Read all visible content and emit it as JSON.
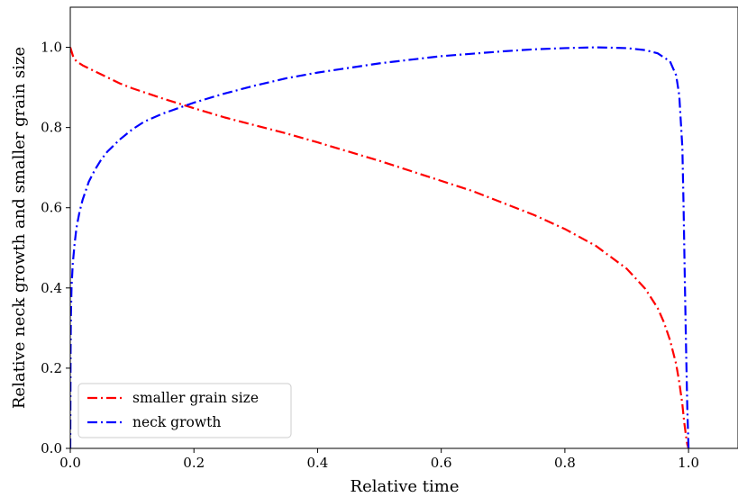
{
  "chart_data": {
    "type": "line",
    "title": "",
    "xlabel": "Relative time",
    "ylabel": "Relative neck growth and smaller grain size",
    "xlim": [
      0.0,
      1.08
    ],
    "ylim": [
      0.0,
      1.1
    ],
    "xticks": [
      0.0,
      0.2,
      0.4,
      0.6,
      0.8,
      1.0
    ],
    "xtick_labels": [
      "0.0",
      "0.2",
      "0.4",
      "0.6",
      "0.8",
      "1.0"
    ],
    "yticks": [
      0.0,
      0.2,
      0.4,
      0.6,
      0.8,
      1.0
    ],
    "ytick_labels": [
      "0.0",
      "0.2",
      "0.4",
      "0.6",
      "0.8",
      "1.0"
    ],
    "grid": false,
    "legend_position": "lower-left",
    "series": [
      {
        "name": "smaller grain size",
        "color": "#ff0000",
        "linestyle": "dashdot",
        "x": [
          0.0,
          0.002,
          0.005,
          0.01,
          0.02,
          0.04,
          0.06,
          0.08,
          0.1,
          0.15,
          0.2,
          0.25,
          0.3,
          0.35,
          0.4,
          0.45,
          0.5,
          0.55,
          0.6,
          0.65,
          0.7,
          0.75,
          0.8,
          0.85,
          0.9,
          0.93,
          0.95,
          0.96,
          0.97,
          0.98,
          0.985,
          0.99,
          0.993,
          0.996,
          0.998,
          1.0
        ],
        "y": [
          1.0,
          0.99,
          0.975,
          0.965,
          0.955,
          0.94,
          0.925,
          0.91,
          0.898,
          0.872,
          0.848,
          0.825,
          0.805,
          0.785,
          0.763,
          0.74,
          0.717,
          0.692,
          0.667,
          0.642,
          0.612,
          0.582,
          0.547,
          0.505,
          0.448,
          0.398,
          0.35,
          0.315,
          0.27,
          0.21,
          0.165,
          0.11,
          0.065,
          0.03,
          0.01,
          0.0
        ]
      },
      {
        "name": "neck growth",
        "color": "#0000ff",
        "linestyle": "dashdot",
        "x": [
          0.0,
          0.0005,
          0.001,
          0.002,
          0.004,
          0.007,
          0.01,
          0.015,
          0.02,
          0.03,
          0.04,
          0.05,
          0.06,
          0.08,
          0.1,
          0.12,
          0.15,
          0.2,
          0.25,
          0.3,
          0.35,
          0.4,
          0.5,
          0.6,
          0.7,
          0.75,
          0.8,
          0.85,
          0.9,
          0.93,
          0.95,
          0.97,
          0.98,
          0.985,
          0.99,
          0.992,
          0.994,
          0.996,
          0.998,
          1.0
        ],
        "y": [
          0.0,
          0.24,
          0.33,
          0.4,
          0.46,
          0.51,
          0.55,
          0.59,
          0.62,
          0.665,
          0.695,
          0.72,
          0.74,
          0.77,
          0.795,
          0.815,
          0.835,
          0.862,
          0.885,
          0.905,
          0.923,
          0.937,
          0.96,
          0.978,
          0.99,
          0.995,
          0.998,
          1.0,
          0.998,
          0.993,
          0.985,
          0.965,
          0.93,
          0.88,
          0.75,
          0.6,
          0.42,
          0.25,
          0.1,
          0.0
        ]
      }
    ]
  }
}
